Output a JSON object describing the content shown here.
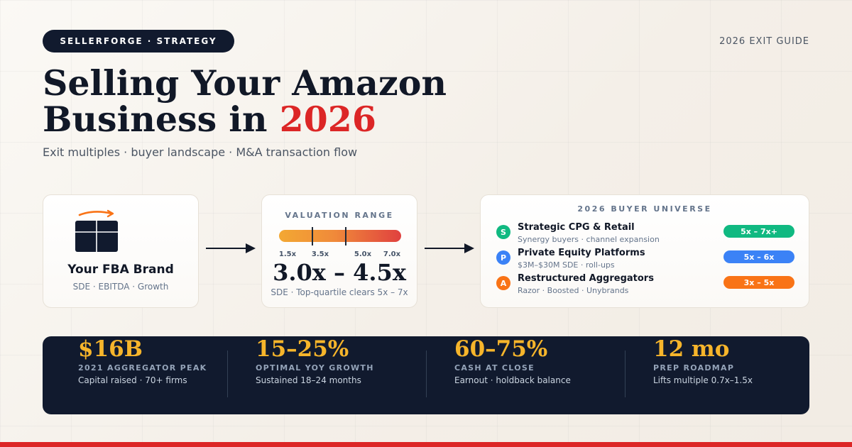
{
  "header": {
    "badge": "SELLERFORGE · STRATEGY",
    "guide_label": "2026 EXIT GUIDE"
  },
  "title": {
    "line1": "Selling Your Amazon",
    "line2_prefix": "Business in ",
    "line2_accent": "2026"
  },
  "subtitle": "Exit multiples · buyer landscape · M&A transaction flow",
  "brand_card": {
    "icon": "box-with-smile-arrow-icon",
    "name": "Your FBA Brand",
    "meta": "SDE · EBITDA · Growth"
  },
  "valuation_card": {
    "title": "VALUATION RANGE",
    "scale": {
      "min": 1.5,
      "max": 7.0
    },
    "ticks": [
      "1.5x",
      "3.5x",
      "5.0x",
      "7.0x"
    ],
    "range_low": 3.0,
    "range_high": 4.5,
    "range_label": "3.0x – 4.5x",
    "note": "SDE · Top-quartile clears 5x – 7x",
    "gradient_colors": [
      "#f3a833",
      "#f08a3a",
      "#e0413f"
    ]
  },
  "buyers_card": {
    "title": "2026 BUYER UNIVERSE",
    "buyers": [
      {
        "initial": "S",
        "name": "Strategic CPG & Retail",
        "sub": "Synergy buyers · channel expansion",
        "multiple": "5x – 7x+",
        "color": "#10b981"
      },
      {
        "initial": "P",
        "name": "Private Equity Platforms",
        "sub": "$3M–$30M SDE · roll-ups",
        "multiple": "5x – 6x",
        "color": "#3b82f6"
      },
      {
        "initial": "A",
        "name": "Restructured Aggregators",
        "sub": "Razor · Boosted · Unybrands",
        "multiple": "3x – 5x",
        "color": "#f97316"
      }
    ]
  },
  "stats": [
    {
      "value": "$16B",
      "label": "2021 AGGREGATOR PEAK",
      "desc": "Capital raised · 70+ firms"
    },
    {
      "value": "15–25%",
      "label": "OPTIMAL YOY GROWTH",
      "desc": "Sustained 18–24 months"
    },
    {
      "value": "60–75%",
      "label": "CASH AT CLOSE",
      "desc": "Earnout · holdback balance"
    },
    {
      "value": "12 mo",
      "label": "PREP ROADMAP",
      "desc": "Lifts multiple 0.7x–1.5x"
    }
  ],
  "colors": {
    "navy": "#111a2e",
    "accent_red": "#dc2626",
    "stat_gold": "#f6b52b",
    "amazon_orange": "#f97316"
  }
}
